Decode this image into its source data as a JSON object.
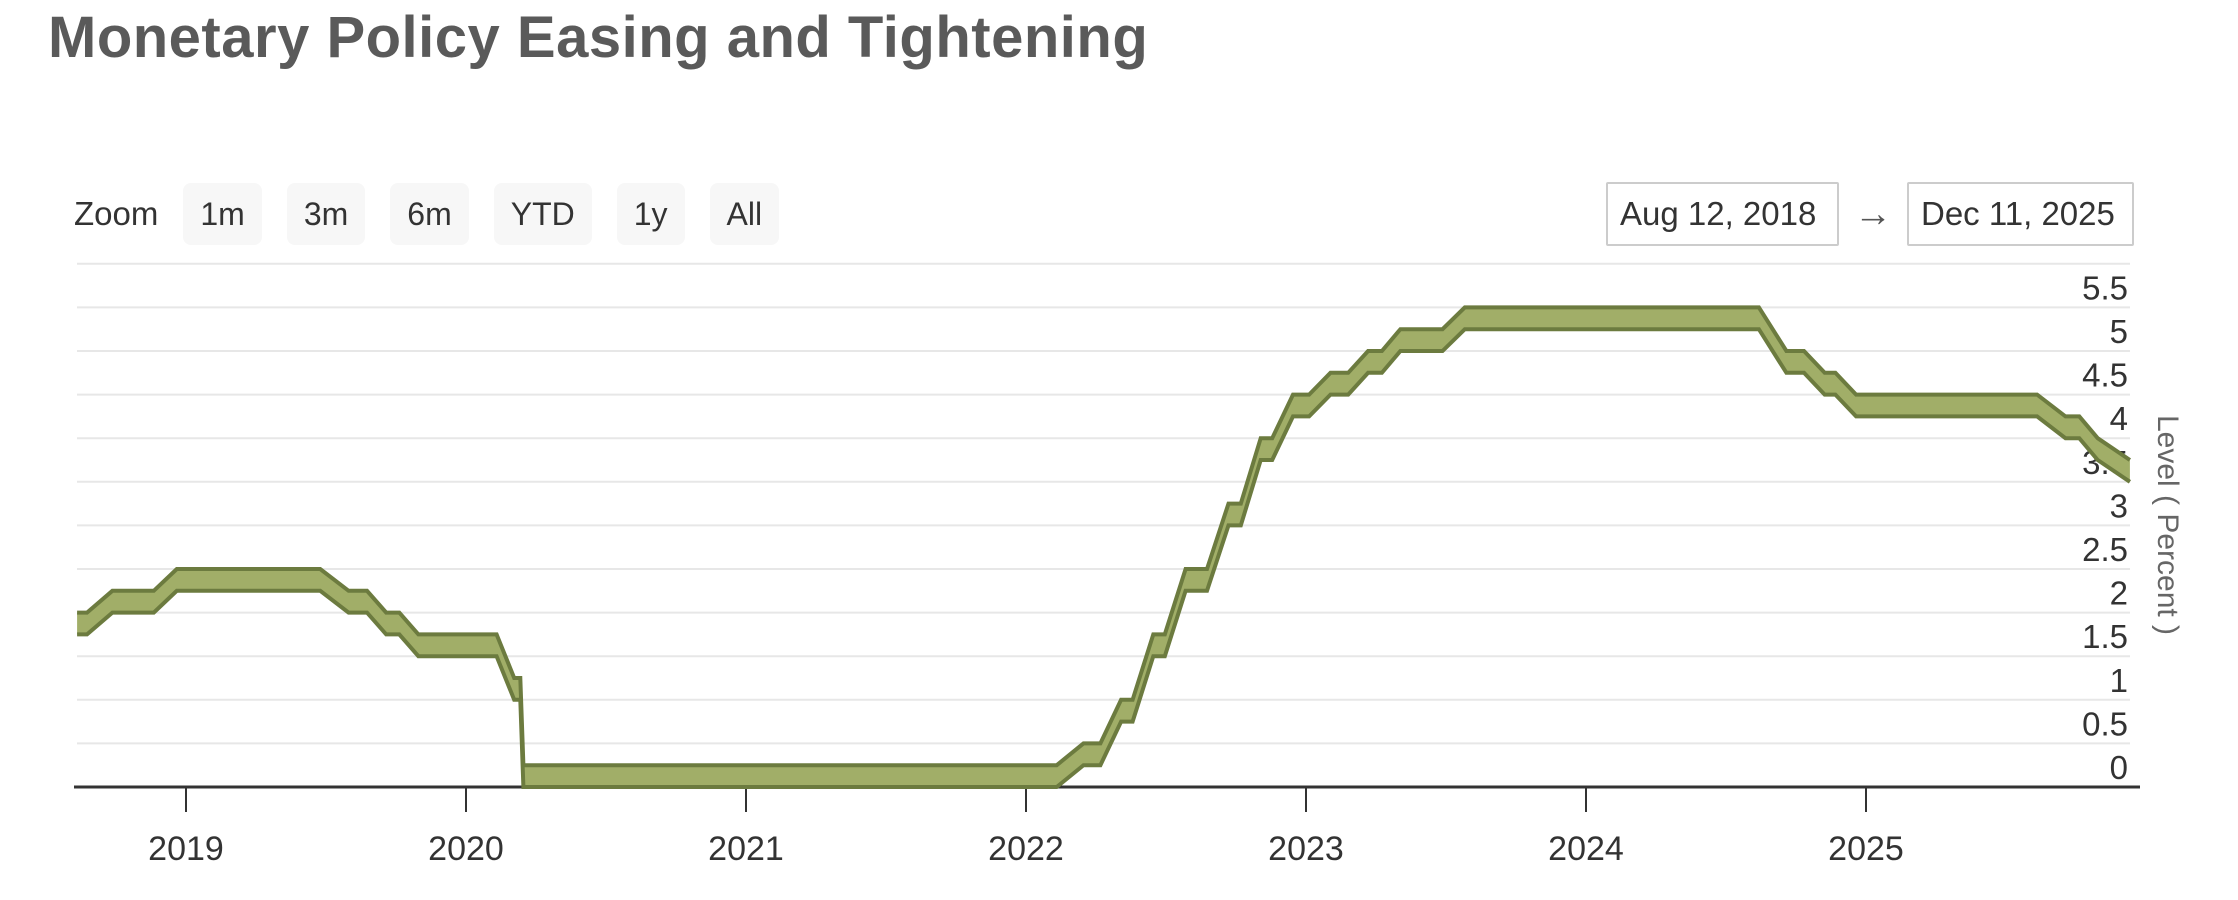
{
  "title": "Monetary Policy Easing and Tightening",
  "range_selector": {
    "zoom_label": "Zoom",
    "buttons": [
      "1m",
      "3m",
      "6m",
      "YTD",
      "1y",
      "All"
    ],
    "from_date": "Aug 12, 2018",
    "arrow": "→",
    "to_date": "Dec 11, 2025"
  },
  "chart_data": {
    "type": "area",
    "subtype": "arearange-band",
    "title": "Monetary Policy Easing and Tightening",
    "ylabel": "Level ( Percent )",
    "ylim": [
      0,
      6
    ],
    "y_tick_step": 0.5,
    "y_tick_labels": [
      "0",
      "0.5",
      "1",
      "1.5",
      "2",
      "2.5",
      "3",
      "3.5",
      "4",
      "4.5",
      "5",
      "5.5"
    ],
    "x_tick_labels": [
      "2019",
      "2020",
      "2021",
      "2022",
      "2023",
      "2024",
      "2025"
    ],
    "x_range": [
      "2018-08-12",
      "2025-12-11"
    ],
    "grid": "horizontal",
    "legend": "none",
    "series": [
      {
        "value_format": "[date, lower_bound, upper_bound]",
        "points": [
          [
            "2018-08-12",
            1.75,
            2.0
          ],
          [
            "2018-08-25",
            1.75,
            2.0
          ],
          [
            "2018-09-27",
            2.0,
            2.25
          ],
          [
            "2018-11-20",
            2.0,
            2.25
          ],
          [
            "2018-12-20",
            2.25,
            2.5
          ],
          [
            "2019-06-25",
            2.25,
            2.5
          ],
          [
            "2019-08-01",
            2.0,
            2.25
          ],
          [
            "2019-08-25",
            2.0,
            2.25
          ],
          [
            "2019-09-19",
            1.75,
            2.0
          ],
          [
            "2019-10-06",
            1.75,
            2.0
          ],
          [
            "2019-10-31",
            1.5,
            1.75
          ],
          [
            "2020-02-10",
            1.5,
            1.75
          ],
          [
            "2020-03-04",
            1.0,
            1.25
          ],
          [
            "2020-03-12",
            1.0,
            1.25
          ],
          [
            "2020-03-16",
            0.0,
            0.25
          ],
          [
            "2022-02-10",
            0.0,
            0.25
          ],
          [
            "2022-03-17",
            0.25,
            0.5
          ],
          [
            "2022-04-08",
            0.25,
            0.5
          ],
          [
            "2022-05-05",
            0.75,
            1.0
          ],
          [
            "2022-05-20",
            0.75,
            1.0
          ],
          [
            "2022-06-16",
            1.5,
            1.75
          ],
          [
            "2022-07-01",
            1.5,
            1.75
          ],
          [
            "2022-07-28",
            2.25,
            2.5
          ],
          [
            "2022-08-25",
            2.25,
            2.5
          ],
          [
            "2022-09-22",
            3.0,
            3.25
          ],
          [
            "2022-10-08",
            3.0,
            3.25
          ],
          [
            "2022-11-03",
            3.75,
            4.0
          ],
          [
            "2022-11-18",
            3.75,
            4.0
          ],
          [
            "2022-12-15",
            4.25,
            4.5
          ],
          [
            "2023-01-05",
            4.25,
            4.5
          ],
          [
            "2023-02-02",
            4.5,
            4.75
          ],
          [
            "2023-02-25",
            4.5,
            4.75
          ],
          [
            "2023-03-23",
            4.75,
            5.0
          ],
          [
            "2023-04-10",
            4.75,
            5.0
          ],
          [
            "2023-05-04",
            5.0,
            5.25
          ],
          [
            "2023-06-28",
            5.0,
            5.25
          ],
          [
            "2023-07-27",
            5.25,
            5.5
          ],
          [
            "2024-08-14",
            5.25,
            5.5
          ],
          [
            "2024-09-19",
            4.75,
            5.0
          ],
          [
            "2024-10-12",
            4.75,
            5.0
          ],
          [
            "2024-11-08",
            4.5,
            4.75
          ],
          [
            "2024-11-22",
            4.5,
            4.75
          ],
          [
            "2024-12-19",
            4.25,
            4.5
          ],
          [
            "2025-08-12",
            4.25,
            4.5
          ],
          [
            "2025-09-18",
            4.0,
            4.25
          ],
          [
            "2025-10-06",
            4.0,
            4.25
          ],
          [
            "2025-10-30",
            3.75,
            4.0
          ],
          [
            "2025-12-11",
            3.5,
            3.75
          ]
        ]
      }
    ]
  },
  "colors": {
    "band_fill": "#a1ae68",
    "band_edge": "#6c7b3f",
    "grid_line": "#e7e7e7",
    "axis_line": "#333333",
    "tick_text": "#333333",
    "axis_title_text": "#666666",
    "title_text": "#5a5a5a",
    "button_bg": "#f7f7f7",
    "button_text": "#333333",
    "input_border": "#cccccc",
    "arrow_text": "#555555"
  }
}
